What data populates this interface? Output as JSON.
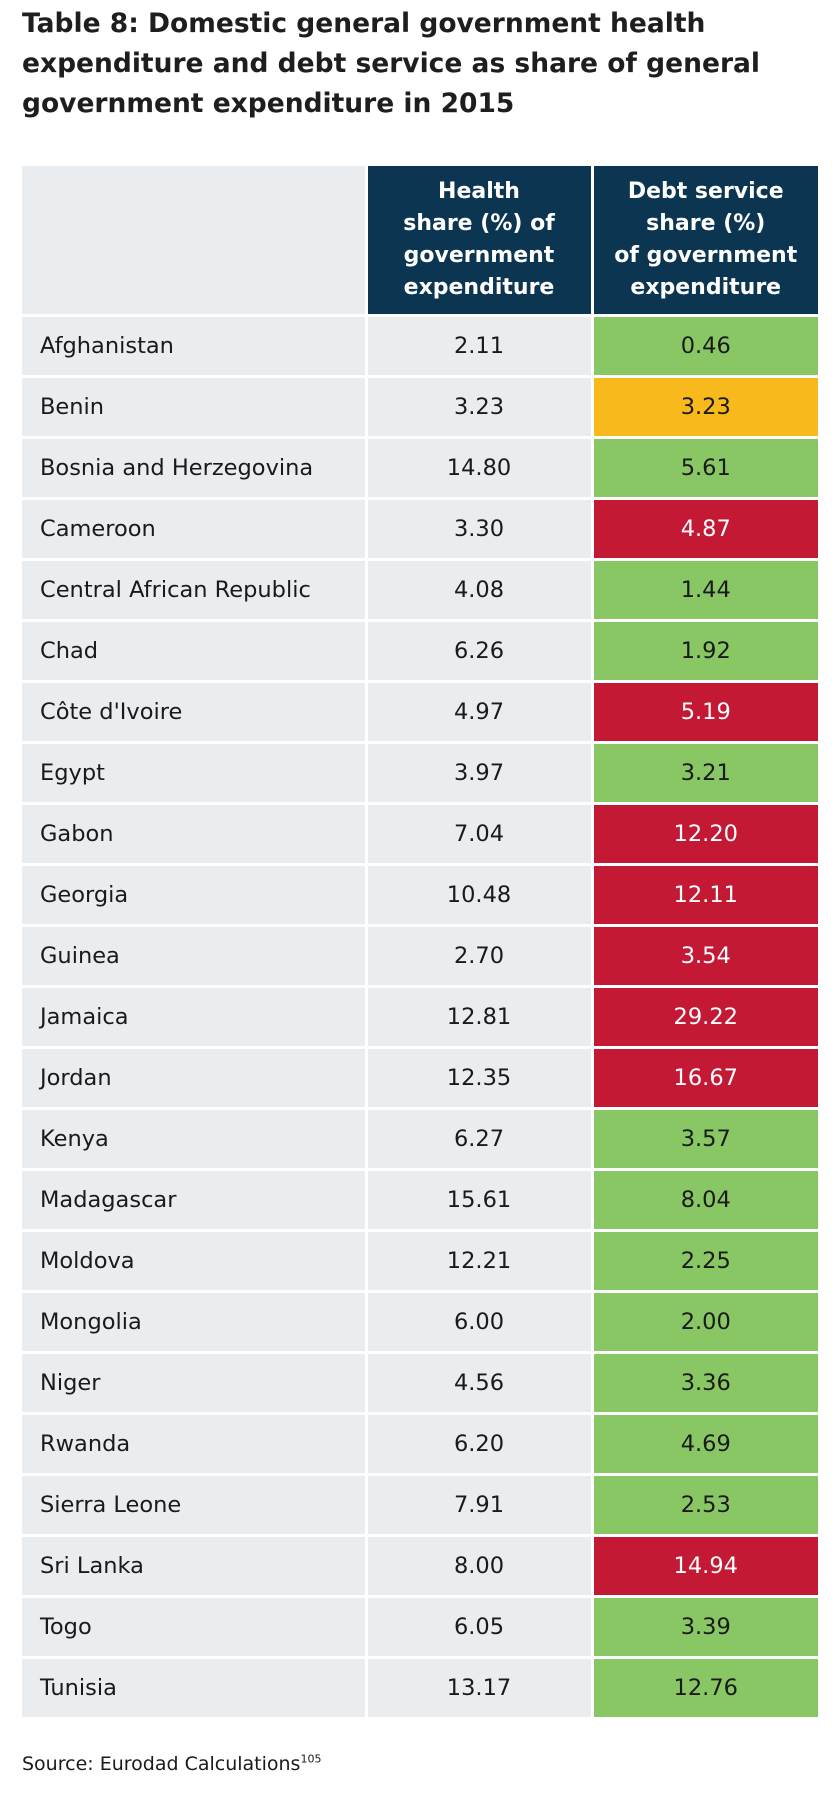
{
  "title": "Table 8: Domestic general government health expenditure and debt service as share of general government expenditure in 2015",
  "table": {
    "headers": {
      "corner": "",
      "health": "Health\nshare (%) of\ngovernment\nexpenditure",
      "debt": "Debt service\nshare (%)\nof government\nexpenditure"
    },
    "legend_colors": {
      "green": "#89c765",
      "amber": "#f7b91b",
      "red": "#c41934",
      "header_bg": "#0b3550",
      "row_bg": "#e9edf0"
    },
    "rows": [
      {
        "country": "Afghanistan",
        "health": "2.11",
        "debt": "0.46",
        "status": "green"
      },
      {
        "country": "Benin",
        "health": "3.23",
        "debt": "3.23",
        "status": "amber"
      },
      {
        "country": "Bosnia and Herzegovina",
        "health": "14.80",
        "debt": "5.61",
        "status": "green"
      },
      {
        "country": "Cameroon",
        "health": "3.30",
        "debt": "4.87",
        "status": "red"
      },
      {
        "country": "Central African Republic",
        "health": "4.08",
        "debt": "1.44",
        "status": "green"
      },
      {
        "country": "Chad",
        "health": "6.26",
        "debt": "1.92",
        "status": "green"
      },
      {
        "country": "Côte d'Ivoire",
        "health": "4.97",
        "debt": "5.19",
        "status": "red"
      },
      {
        "country": "Egypt",
        "health": "3.97",
        "debt": "3.21",
        "status": "green"
      },
      {
        "country": "Gabon",
        "health": "7.04",
        "debt": "12.20",
        "status": "red"
      },
      {
        "country": "Georgia",
        "health": "10.48",
        "debt": "12.11",
        "status": "red"
      },
      {
        "country": "Guinea",
        "health": "2.70",
        "debt": "3.54",
        "status": "red"
      },
      {
        "country": "Jamaica",
        "health": "12.81",
        "debt": "29.22",
        "status": "red"
      },
      {
        "country": "Jordan",
        "health": "12.35",
        "debt": "16.67",
        "status": "red"
      },
      {
        "country": "Kenya",
        "health": "6.27",
        "debt": "3.57",
        "status": "green"
      },
      {
        "country": "Madagascar",
        "health": "15.61",
        "debt": "8.04",
        "status": "green"
      },
      {
        "country": "Moldova",
        "health": "12.21",
        "debt": "2.25",
        "status": "green"
      },
      {
        "country": "Mongolia",
        "health": "6.00",
        "debt": "2.00",
        "status": "green"
      },
      {
        "country": "Niger",
        "health": "4.56",
        "debt": "3.36",
        "status": "green"
      },
      {
        "country": "Rwanda",
        "health": "6.20",
        "debt": "4.69",
        "status": "green"
      },
      {
        "country": "Sierra Leone",
        "health": "7.91",
        "debt": "2.53",
        "status": "green"
      },
      {
        "country": "Sri Lanka",
        "health": "8.00",
        "debt": "14.94",
        "status": "red"
      },
      {
        "country": "Togo",
        "health": "6.05",
        "debt": "3.39",
        "status": "green"
      },
      {
        "country": "Tunisia",
        "health": "13.17",
        "debt": "12.76",
        "status": "green"
      }
    ]
  },
  "source": {
    "text": "Source: Eurodad Calculations",
    "footnote": "105"
  }
}
